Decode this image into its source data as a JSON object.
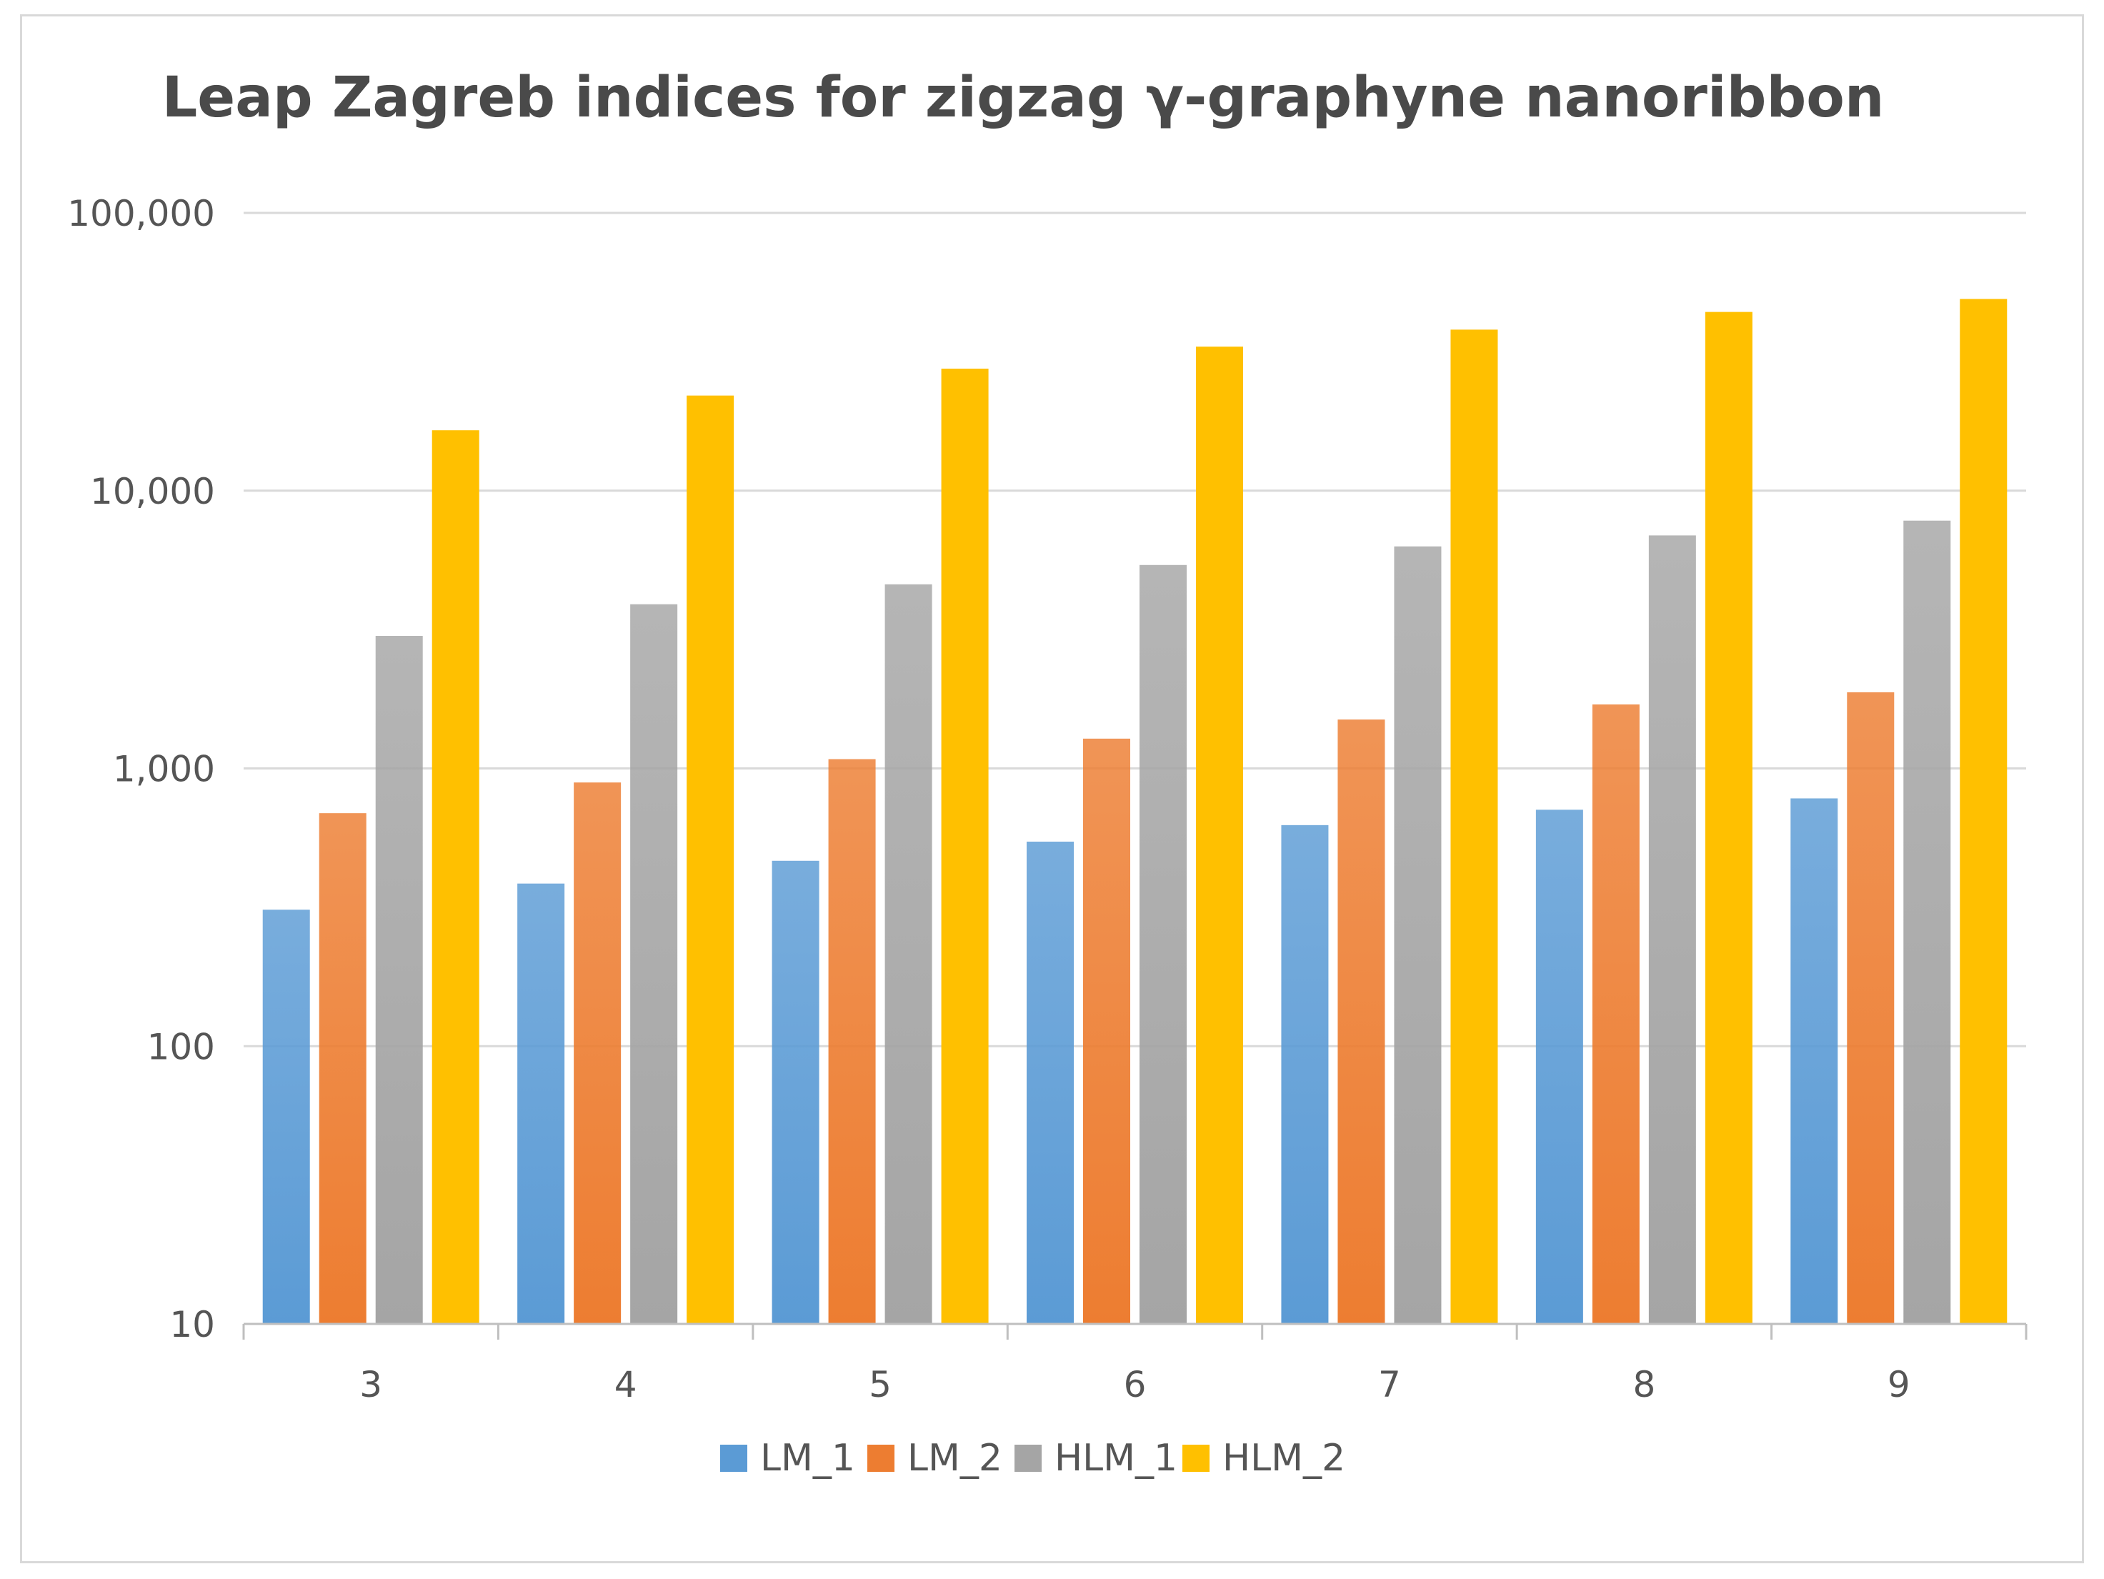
{
  "chart_data": {
    "type": "bar",
    "title": "Leap Zagreb indices for zigzag γ-graphyne nanoribbon",
    "xlabel": "",
    "ylabel": "",
    "y_scale": "log",
    "ylim": [
      10,
      100000
    ],
    "y_ticks": [
      {
        "value": 10,
        "label": "10"
      },
      {
        "value": 100,
        "label": "100"
      },
      {
        "value": 1000,
        "label": "1,000"
      },
      {
        "value": 10000,
        "label": "10,000"
      },
      {
        "value": 100000,
        "label": "100,000"
      }
    ],
    "grid": "horizontal",
    "legend_position": "bottom",
    "categories": [
      "3",
      "4",
      "5",
      "6",
      "7",
      "8",
      "9"
    ],
    "series": [
      {
        "name": "LM_1",
        "color": "#5b9bd5",
        "values": [
          310,
          385,
          465,
          545,
          625,
          710,
          780
        ]
      },
      {
        "name": "LM_2",
        "color": "#ed7d31",
        "values": [
          690,
          890,
          1080,
          1280,
          1500,
          1700,
          1880
        ]
      },
      {
        "name": "HLM_1",
        "color": "#a5a5a5",
        "values": [
          3000,
          3900,
          4600,
          5400,
          6300,
          6900,
          7800
        ]
      },
      {
        "name": "HLM_2",
        "color": "#ffc000",
        "values": [
          16500,
          22000,
          27500,
          33000,
          38000,
          44000,
          49000
        ]
      }
    ]
  }
}
